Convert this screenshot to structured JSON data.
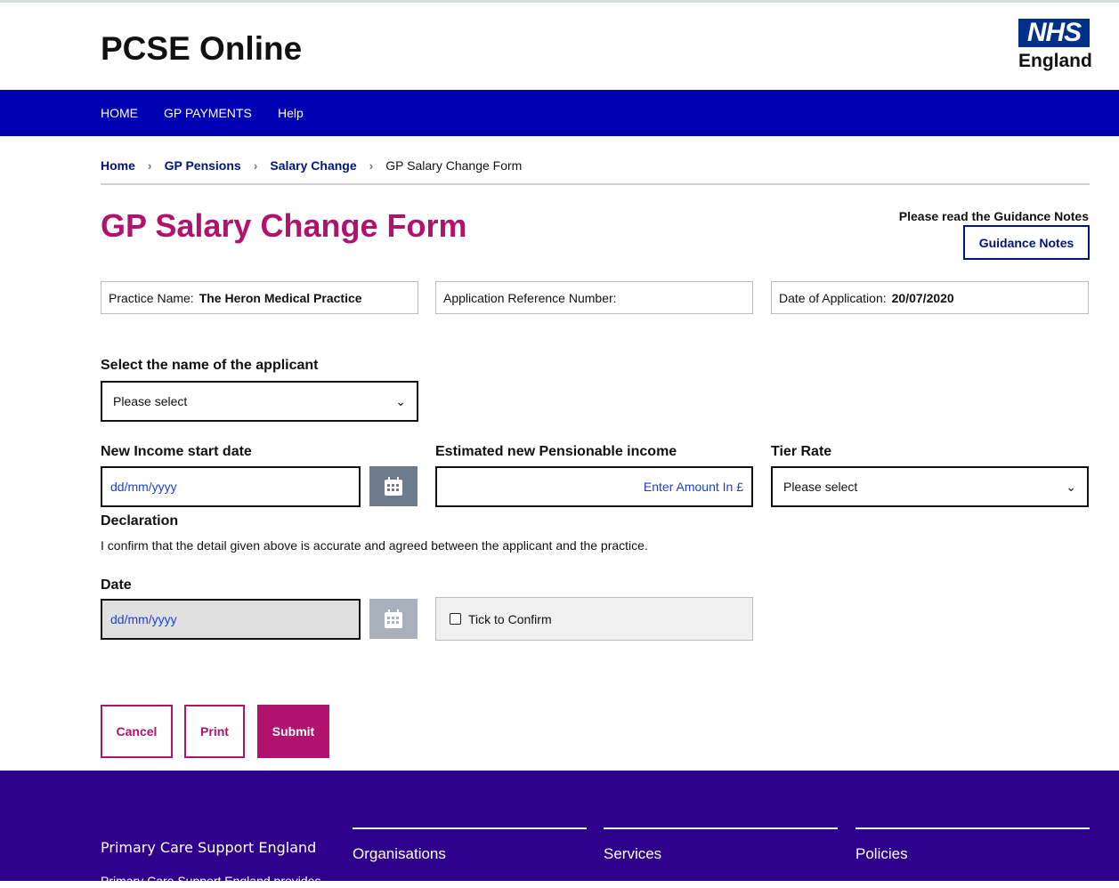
{
  "header": {
    "title": "PCSE Online",
    "logo_top": "NHS",
    "logo_bottom": "England"
  },
  "nav": {
    "items": [
      "HOME",
      "GP PAYMENTS",
      "Help"
    ]
  },
  "breadcrumb": [
    "Home",
    "GP Pensions",
    "Salary Change",
    "GP Salary Change Form"
  ],
  "page": {
    "heading": "GP Salary Change Form",
    "guidance_prompt": "Please read the Guidance Notes",
    "guidance_button": "Guidance Notes"
  },
  "info": {
    "practice_label": "Practice Name:",
    "practice_value": "The Heron Medical Practice",
    "ref_label": "Application Reference Number:",
    "date_label": "Date of Application:",
    "date_value": "20/07/2020"
  },
  "form": {
    "applicant_label": "Select the name of the applicant",
    "applicant_value": "Please select",
    "start_label": "New Income start date",
    "start_placeholder": "dd/mm/yyyy",
    "income_label": "Estimated new Pensionable income",
    "income_placeholder": "Enter Amount In £",
    "tier_label": "Tier Rate",
    "tier_value": "Please select",
    "declaration_label": "Declaration",
    "declaration_text": "I confirm that the detail given above is accurate and agreed between the applicant and the practice.",
    "date_label": "Date",
    "date_placeholder": "dd/mm/yyyy",
    "confirm_label": "Tick to Confirm"
  },
  "buttons": {
    "cancel": "Cancel",
    "print": "Print",
    "submit": "Submit"
  },
  "footer": {
    "brand": "Primary Care Support England",
    "blurb": "Primary Care Support England provides",
    "cols": [
      "Organisations",
      "Services",
      "Policies"
    ]
  },
  "colors": {
    "nav": "#0000b3",
    "accent": "#b0126e",
    "footer": "#2e008b",
    "link": "#00157a"
  }
}
